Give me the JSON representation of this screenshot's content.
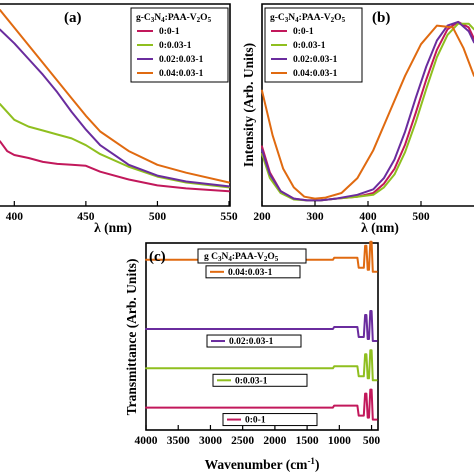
{
  "colors": {
    "orange": "#e06a10",
    "purple": "#6a2c9e",
    "green": "#8fbf1f",
    "magenta": "#c2185b"
  },
  "chart_data": [
    {
      "panel": "(a)",
      "type": "line",
      "xlabel": "λ (nm)",
      "ylabel": "",
      "xlim": [
        390,
        550
      ],
      "ylim": [
        0,
        1
      ],
      "xticks": [
        "400",
        "450",
        "500",
        "550"
      ],
      "legend_title": "g-C3N4:PAA-V2O5",
      "legend_position": "top-right",
      "series": [
        {
          "name": "0:0-1",
          "color": "magenta",
          "x": [
            390,
            395,
            400,
            410,
            420,
            430,
            440,
            450,
            460,
            480,
            500,
            520,
            550
          ],
          "y": [
            0.33,
            0.28,
            0.26,
            0.245,
            0.225,
            0.215,
            0.21,
            0.205,
            0.175,
            0.135,
            0.105,
            0.09,
            0.075
          ]
        },
        {
          "name": "0:0.03-1",
          "color": "green",
          "x": [
            390,
            400,
            410,
            420,
            430,
            440,
            450,
            460,
            480,
            500,
            520,
            550
          ],
          "y": [
            0.52,
            0.44,
            0.405,
            0.385,
            0.365,
            0.345,
            0.31,
            0.265,
            0.2,
            0.15,
            0.12,
            0.095
          ]
        },
        {
          "name": "0.02:0.03-1",
          "color": "purple",
          "x": [
            390,
            400,
            410,
            420,
            430,
            440,
            450,
            460,
            480,
            500,
            520,
            550
          ],
          "y": [
            0.9,
            0.83,
            0.75,
            0.67,
            0.58,
            0.48,
            0.39,
            0.31,
            0.21,
            0.155,
            0.125,
            0.1
          ]
        },
        {
          "name": "0.04:0.03-1",
          "color": "orange",
          "x": [
            390,
            400,
            410,
            420,
            430,
            440,
            450,
            460,
            480,
            500,
            520,
            550
          ],
          "y": [
            1.0,
            0.91,
            0.82,
            0.73,
            0.64,
            0.55,
            0.46,
            0.38,
            0.28,
            0.21,
            0.17,
            0.12
          ]
        }
      ]
    },
    {
      "panel": "(b)",
      "type": "line",
      "xlabel": "λ (nm)",
      "ylabel": "Intensity (Arb. Units)",
      "xlim": [
        200,
        600
      ],
      "ylim": [
        0,
        1
      ],
      "xticks": [
        "200",
        "300",
        "400",
        "500"
      ],
      "legend_title": "g-C3N4:PAA-V2O5",
      "legend_position": "top-left",
      "series": [
        {
          "name": "0:0-1",
          "color": "magenta",
          "x": [
            200,
            215,
            235,
            260,
            285,
            310,
            340,
            380,
            410,
            430,
            450,
            470,
            490,
            510,
            530,
            550,
            570,
            590,
            600
          ],
          "y": [
            0.32,
            0.18,
            0.08,
            0.04,
            0.03,
            0.03,
            0.04,
            0.05,
            0.07,
            0.12,
            0.2,
            0.33,
            0.5,
            0.68,
            0.84,
            0.95,
            0.99,
            0.96,
            0.9
          ]
        },
        {
          "name": "0:0.03-1",
          "color": "green",
          "x": [
            200,
            215,
            235,
            260,
            285,
            310,
            340,
            380,
            410,
            430,
            450,
            470,
            490,
            510,
            530,
            550,
            570,
            590,
            600
          ],
          "y": [
            0.28,
            0.15,
            0.07,
            0.035,
            0.03,
            0.03,
            0.04,
            0.05,
            0.06,
            0.1,
            0.17,
            0.29,
            0.45,
            0.63,
            0.8,
            0.92,
            0.98,
            0.98,
            0.95
          ]
        },
        {
          "name": "0.02:0.03-1",
          "color": "purple",
          "x": [
            200,
            215,
            235,
            260,
            285,
            310,
            340,
            380,
            410,
            430,
            450,
            470,
            490,
            510,
            530,
            550,
            570,
            590,
            600
          ],
          "y": [
            0.3,
            0.17,
            0.08,
            0.04,
            0.03,
            0.03,
            0.04,
            0.06,
            0.09,
            0.15,
            0.25,
            0.4,
            0.58,
            0.75,
            0.89,
            0.97,
            0.99,
            0.94,
            0.88
          ]
        },
        {
          "name": "0.04:0.03-1",
          "color": "orange",
          "x": [
            200,
            220,
            240,
            260,
            280,
            300,
            320,
            350,
            380,
            410,
            440,
            470,
            500,
            530,
            560,
            580,
            600
          ],
          "y": [
            0.62,
            0.38,
            0.2,
            0.1,
            0.05,
            0.04,
            0.045,
            0.07,
            0.15,
            0.3,
            0.5,
            0.7,
            0.87,
            0.97,
            0.96,
            0.85,
            0.7
          ]
        }
      ]
    },
    {
      "panel": "(c)",
      "type": "line",
      "xlabel": "Wavenumber (cm-1)",
      "ylabel": "Transmittance (Arb. Units)",
      "xlim": [
        4000,
        400
      ],
      "ylim": [
        0,
        1
      ],
      "xticks": [
        "4000",
        "3500",
        "3000",
        "2500",
        "2000",
        "1500",
        "1000",
        "500"
      ],
      "legend_title": "g C3N4:PAA-V2O5",
      "series": [
        {
          "name": "0.04:0.03-1",
          "color": "orange",
          "baseline": 0.91
        },
        {
          "name": "0.02:0.03-1",
          "color": "purple",
          "baseline": 0.54
        },
        {
          "name": "0:0.03-1",
          "color": "green",
          "baseline": 0.33
        },
        {
          "name": "0:0-1",
          "color": "magenta",
          "baseline": 0.12
        }
      ]
    }
  ]
}
